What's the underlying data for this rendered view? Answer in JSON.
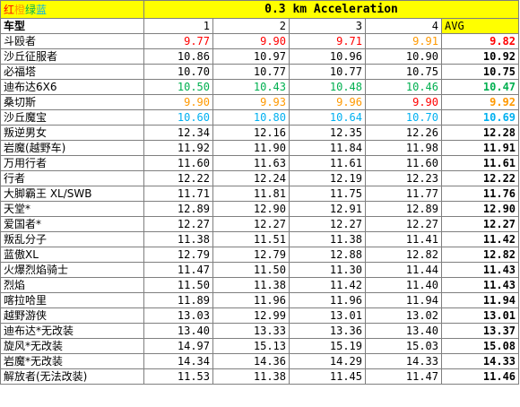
{
  "legend": {
    "red": "红",
    "orange": "橙",
    "green": "绿",
    "blue": "蓝"
  },
  "title": "0.3 km Acceleration",
  "header": {
    "label": "车型",
    "cols": [
      "1",
      "2",
      "3",
      "4"
    ],
    "avg": "AVG"
  },
  "colors": {
    "red": "#ff0000",
    "orange": "#ff9900",
    "green": "#00b050",
    "blue": "#00b0f0",
    "header_yellow": "#ffff00"
  },
  "rows": [
    {
      "name": "斗殴者",
      "v1": "9.77",
      "v2": "9.90",
      "v3": "9.71",
      "v4": "9.91",
      "avg": "9.82",
      "c1": "c-red",
      "c2": "c-red",
      "c3": "c-red",
      "c4": "c-orange",
      "cavg": "c-red"
    },
    {
      "name": "沙丘征服者",
      "v1": "10.86",
      "v2": "10.97",
      "v3": "10.96",
      "v4": "10.90",
      "avg": "10.92"
    },
    {
      "name": "必福塔",
      "v1": "10.70",
      "v2": "10.77",
      "v3": "10.77",
      "v4": "10.75",
      "avg": "10.75"
    },
    {
      "name": "迪布达6X6",
      "v1": "10.50",
      "v2": "10.43",
      "v3": "10.48",
      "v4": "10.46",
      "avg": "10.47",
      "c1": "c-green",
      "c2": "c-green",
      "c3": "c-green",
      "c4": "c-green",
      "cavg": "c-green"
    },
    {
      "name": "桑切斯",
      "v1": "9.90",
      "v2": "9.93",
      "v3": "9.96",
      "v4": "9.90",
      "avg": "9.92",
      "c1": "c-orange",
      "c2": "c-orange",
      "c3": "c-orange",
      "c4": "c-red",
      "cavg": "c-orange"
    },
    {
      "name": "沙丘魔宝",
      "v1": "10.60",
      "v2": "10.80",
      "v3": "10.64",
      "v4": "10.70",
      "avg": "10.69",
      "c1": "c-blue",
      "c2": "c-blue",
      "c3": "c-blue",
      "c4": "c-blue",
      "cavg": "c-blue"
    },
    {
      "name": "叛逆男女",
      "v1": "12.34",
      "v2": "12.16",
      "v3": "12.35",
      "v4": "12.26",
      "avg": "12.28"
    },
    {
      "name": "岩魔(越野车)",
      "v1": "11.92",
      "v2": "11.90",
      "v3": "11.84",
      "v4": "11.98",
      "avg": "11.91"
    },
    {
      "name": "万用行者",
      "v1": "11.60",
      "v2": "11.63",
      "v3": "11.61",
      "v4": "11.60",
      "avg": "11.61"
    },
    {
      "name": "行者",
      "v1": "12.22",
      "v2": "12.24",
      "v3": "12.19",
      "v4": "12.23",
      "avg": "12.22"
    },
    {
      "name": "大脚霸王 XL/SWB",
      "v1": "11.71",
      "v2": "11.81",
      "v3": "11.75",
      "v4": "11.77",
      "avg": "11.76"
    },
    {
      "name": "天堂*",
      "v1": "12.89",
      "v2": "12.90",
      "v3": "12.91",
      "v4": "12.89",
      "avg": "12.90"
    },
    {
      "name": "爱国者*",
      "v1": "12.27",
      "v2": "12.27",
      "v3": "12.27",
      "v4": "12.27",
      "avg": "12.27"
    },
    {
      "name": "叛乱分子",
      "v1": "11.38",
      "v2": "11.51",
      "v3": "11.38",
      "v4": "11.41",
      "avg": "11.42"
    },
    {
      "name": "蓝傲XL",
      "v1": "12.79",
      "v2": "12.79",
      "v3": "12.88",
      "v4": "12.82",
      "avg": "12.82"
    },
    {
      "name": "火爆烈焰骑士",
      "v1": "11.47",
      "v2": "11.50",
      "v3": "11.30",
      "v4": "11.44",
      "avg": "11.43"
    },
    {
      "name": "烈焰",
      "v1": "11.50",
      "v2": "11.38",
      "v3": "11.42",
      "v4": "11.40",
      "avg": "11.43"
    },
    {
      "name": "喀拉哈里",
      "v1": "11.89",
      "v2": "11.96",
      "v3": "11.96",
      "v4": "11.94",
      "avg": "11.94"
    },
    {
      "name": "越野游侠",
      "v1": "13.03",
      "v2": "12.99",
      "v3": "13.01",
      "v4": "13.02",
      "avg": "13.01"
    },
    {
      "name": "迪布达*无改装",
      "v1": "13.40",
      "v2": "13.33",
      "v3": "13.36",
      "v4": "13.40",
      "avg": "13.37"
    },
    {
      "name": "旋风*无改装",
      "v1": "14.97",
      "v2": "15.13",
      "v3": "15.19",
      "v4": "15.03",
      "avg": "15.08"
    },
    {
      "name": "岩魔*无改装",
      "v1": "14.34",
      "v2": "14.36",
      "v3": "14.29",
      "v4": "14.33",
      "avg": "14.33"
    },
    {
      "name": "解放者(无法改装)",
      "v1": "11.53",
      "v2": "11.38",
      "v3": "11.45",
      "v4": "11.47",
      "avg": "11.46"
    }
  ]
}
